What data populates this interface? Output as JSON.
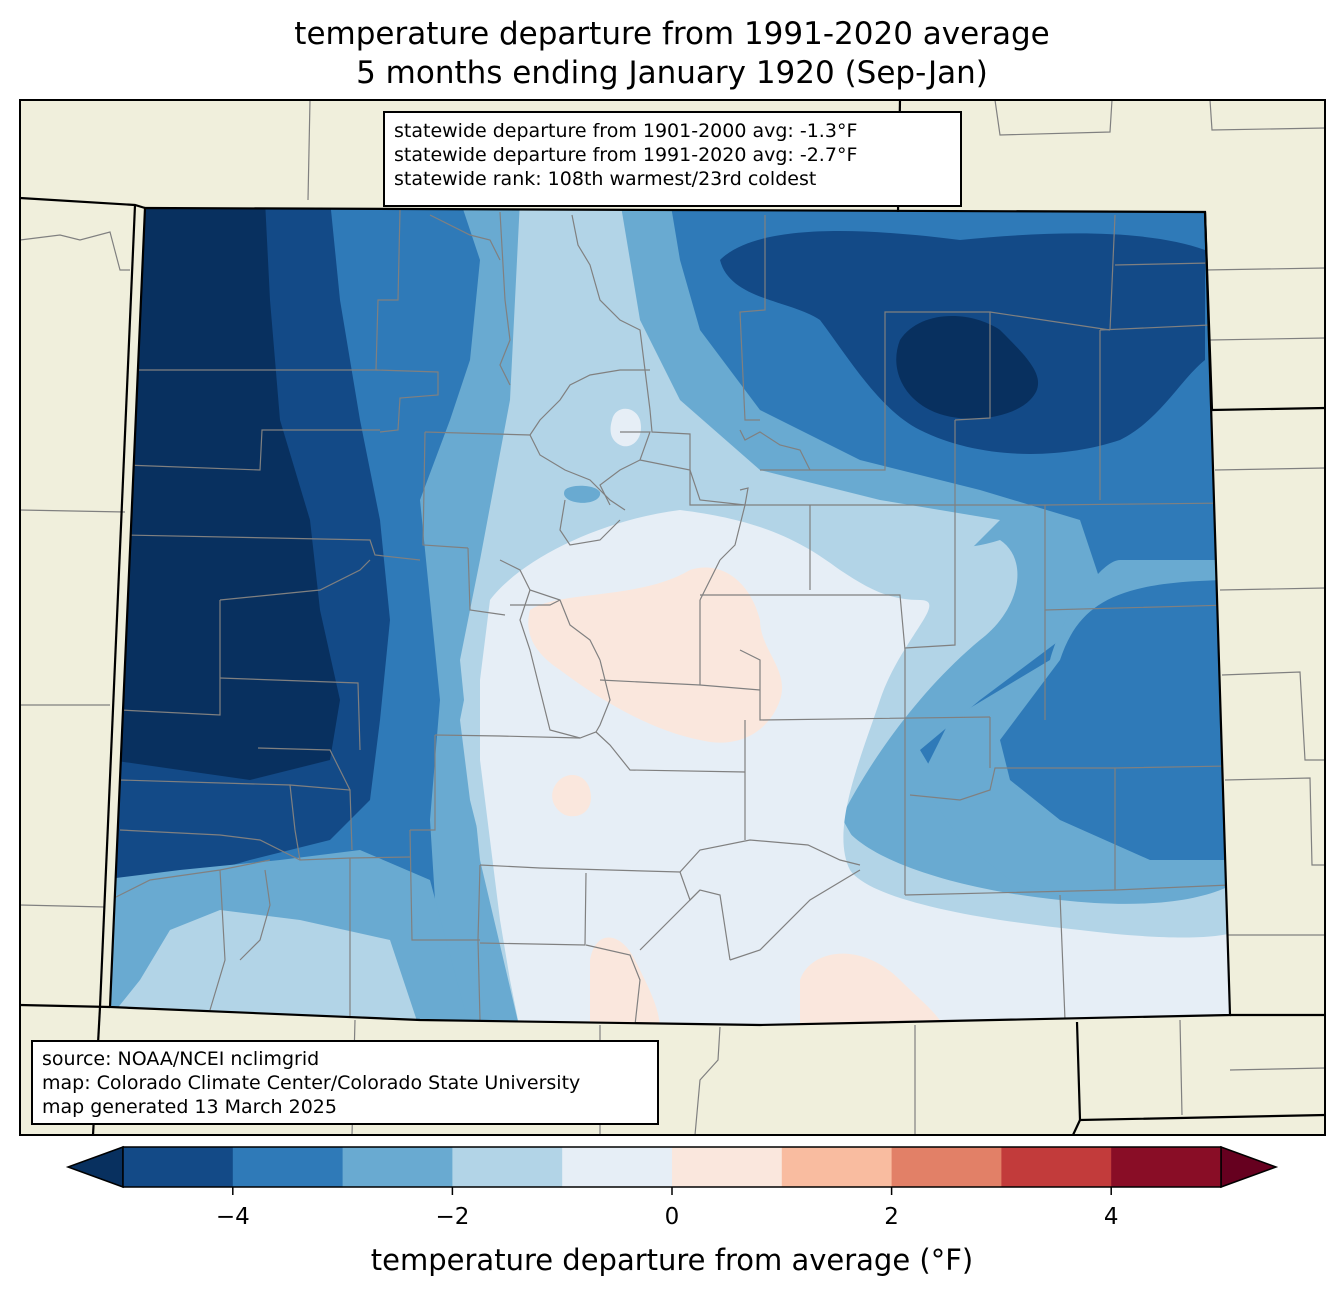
{
  "title_line1": "temperature departure from 1991-2020 average",
  "title_line2": "5 months ending January 1920 (Sep-Jan)",
  "stats": {
    "line1": "statewide departure from 1901-2000 avg: -1.3°F",
    "line2": "statewide departure from 1991-2020 avg: -2.7°F",
    "line3": "statewide rank: 108th warmest/23rd coldest"
  },
  "source": {
    "line1": "source: NOAA/NCEI nclimgrid",
    "line2": "map: Colorado Climate Center/Colorado State University",
    "line3": "map generated 13 March 2025"
  },
  "colorbar": {
    "title": "temperature departure from average (°F)",
    "ticks": [
      {
        "value": -4,
        "label": "−4"
      },
      {
        "value": -2,
        "label": "−2"
      },
      {
        "value": 0,
        "label": "0"
      },
      {
        "value": 2,
        "label": "2"
      },
      {
        "value": 4,
        "label": "4"
      }
    ],
    "range": [
      -5,
      5
    ],
    "bins": [
      {
        "from": -5,
        "to": -4,
        "color": "#134a87"
      },
      {
        "from": -4,
        "to": -3,
        "color": "#2f7ab8"
      },
      {
        "from": -3,
        "to": -2,
        "color": "#69aad1"
      },
      {
        "from": -2,
        "to": -1,
        "color": "#b2d4e7"
      },
      {
        "from": -1,
        "to": 0,
        "color": "#e6eef6"
      },
      {
        "from": 0,
        "to": 1,
        "color": "#fae7dd"
      },
      {
        "from": 1,
        "to": 2,
        "color": "#f9bca0"
      },
      {
        "from": 2,
        "to": 3,
        "color": "#e28067"
      },
      {
        "from": 3,
        "to": 4,
        "color": "#c23b3b"
      },
      {
        "from": 4,
        "to": 5,
        "color": "#890d26"
      }
    ],
    "under_color": "#08305f",
    "over_color": "#66001f"
  },
  "map_colors": {
    "land_outside": "#f0efdc",
    "county_lines": "#808080",
    "state_lines": "#000000"
  }
}
